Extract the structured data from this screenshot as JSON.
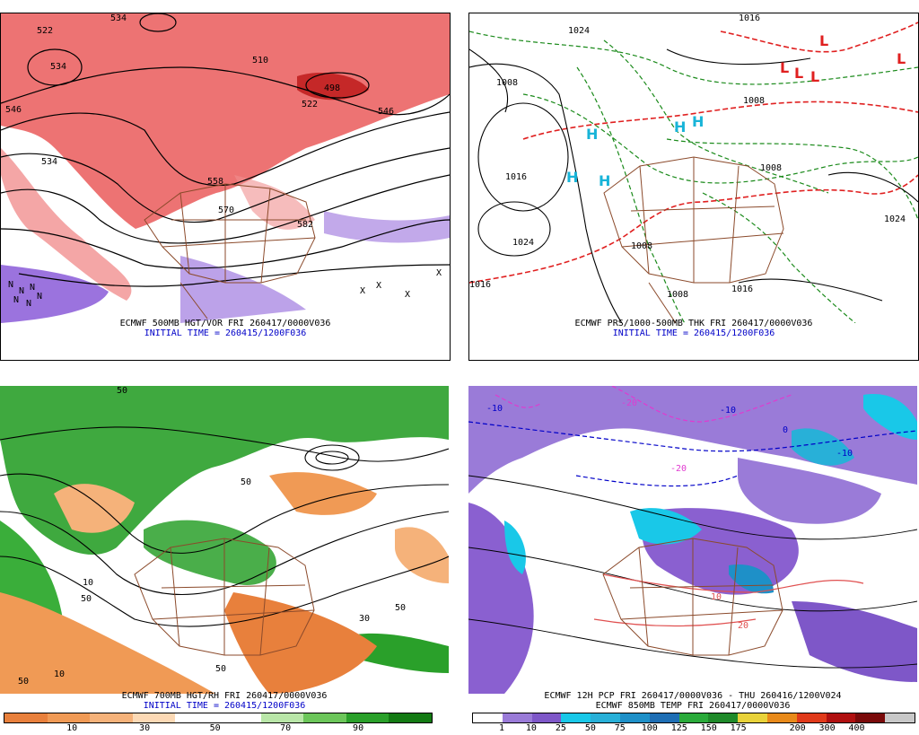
{
  "panels": [
    {
      "id": "p1",
      "caption_line1": "ECMWF 500MB HGT/VOR FRI 260417/0000V036",
      "caption_line2": "INITIAL TIME = 260415/1200F036",
      "contour_labels": [
        "534",
        "522",
        "534",
        "510",
        "498",
        "522",
        "546",
        "558",
        "534",
        "546",
        "570",
        "582"
      ],
      "symbols": [
        "N",
        "N",
        "N",
        "N",
        "N",
        "N",
        "X",
        "X",
        "X",
        "X"
      ]
    },
    {
      "id": "p2",
      "caption_line1": "ECMWF PRS/1000-500MB THK FRI 260417/0000V036",
      "caption_line2": "INITIAL TIME = 260415/1200F036",
      "contour_labels": [
        "1008",
        "1016",
        "1024",
        "1016",
        "1024",
        "1016",
        "1008",
        "1008",
        "1008",
        "1016",
        "1024",
        "1008"
      ],
      "symbols": [
        "H",
        "H",
        "H",
        "H",
        "H",
        "L",
        "L",
        "L",
        "L",
        "L"
      ]
    },
    {
      "id": "p3",
      "caption_line1": "ECMWF 700MB HGT/RH FRI 260417/0000V036",
      "caption_line2": "INITIAL TIME = 260415/1200F036",
      "contour_labels": [
        "50",
        "50",
        "10",
        "50",
        "50",
        "10",
        "30",
        "50",
        "50"
      ]
    },
    {
      "id": "p4",
      "caption_line1": "ECMWF 12H PCP FRI 260417/0000V036 - THU 260416/1200V024",
      "caption_line2": "ECMWF 850MB TEMP FRI 260417/0000V036",
      "contour_labels": [
        "-10",
        "-10",
        "-20",
        "-20",
        "0",
        "10",
        "20",
        "-10"
      ]
    }
  ],
  "colorbar_rh": {
    "colors": [
      "#e8803c",
      "#f09a55",
      "#f5b27a",
      "#fcd9b5",
      "#ffffff",
      "#ffffff",
      "#b9e6a8",
      "#6cc65a",
      "#2aa02a",
      "#137a13"
    ],
    "labels": [
      "10",
      "30",
      "50",
      "70",
      "90"
    ]
  },
  "colorbar_pcp": {
    "colors": [
      "#ffffff",
      "#9a7bd8",
      "#7e57c8",
      "#19c8e8",
      "#28b0d8",
      "#1e90c8",
      "#1e6eb4",
      "#2aaa3a",
      "#1f8a2a",
      "#e8d23a",
      "#e88a1a",
      "#e03a1a",
      "#b01010",
      "#7a0a0a",
      "#c8c8c8"
    ],
    "labels": [
      "1",
      "10",
      "25",
      "50",
      "75",
      "100",
      "125",
      "150",
      "175",
      "200",
      "300",
      "400"
    ]
  },
  "colors": {
    "border_brown": "#8b4a2b",
    "vort_red": "#e03030",
    "vort_purple": "#8a5ad8",
    "thk_green": "#1a8a1a",
    "thk_red": "#e02020",
    "high_cyan": "#18b4d8",
    "rh_green": "#2aa02a",
    "rh_orange": "#e8803c"
  }
}
